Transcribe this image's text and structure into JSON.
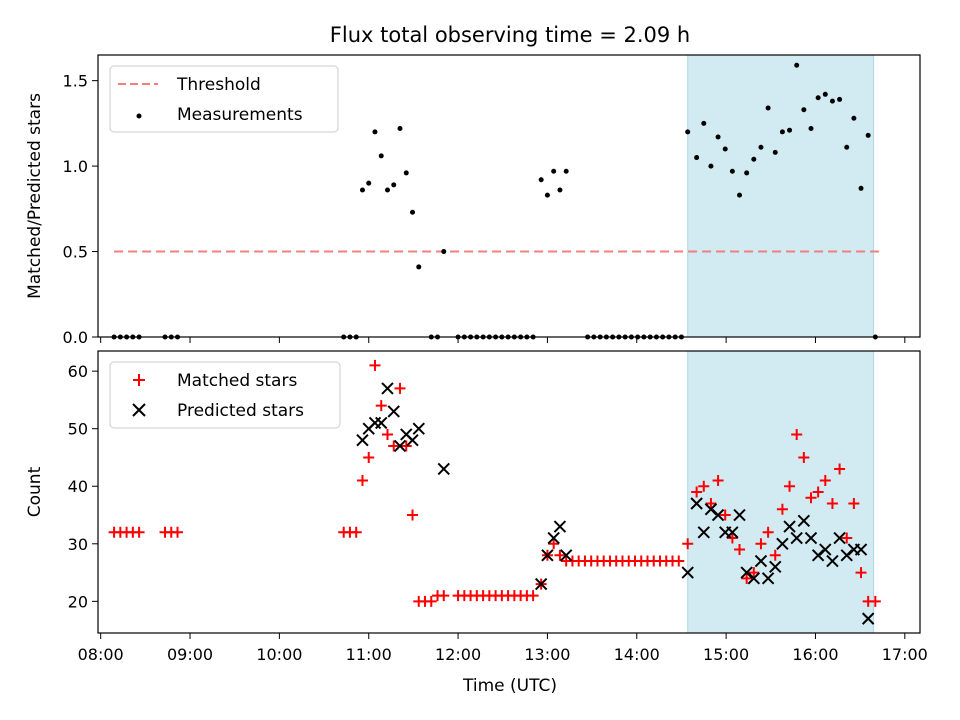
{
  "chart_data": {
    "title": "Flux total observing time = 2.09 h",
    "xlabel": "Time (UTC)",
    "xlim": [
      7.97,
      17.17
    ],
    "x_ticks": [
      {
        "x": 8,
        "label": "08:00"
      },
      {
        "x": 9,
        "label": "09:00"
      },
      {
        "x": 10,
        "label": "10:00"
      },
      {
        "x": 11,
        "label": "11:00"
      },
      {
        "x": 12,
        "label": "12:00"
      },
      {
        "x": 13,
        "label": "13:00"
      },
      {
        "x": 14,
        "label": "14:00"
      },
      {
        "x": 15,
        "label": "15:00"
      },
      {
        "x": 16,
        "label": "16:00"
      },
      {
        "x": 17,
        "label": "17:00"
      }
    ],
    "highlight": {
      "x0": 14.57,
      "x1": 16.65,
      "color": "#add8e6"
    },
    "panels": [
      {
        "type": "scatter",
        "ylabel": "Matched/Predicted stars",
        "ylim": [
          0,
          1.65
        ],
        "y_ticks": [
          {
            "v": 0,
            "label": "0.0"
          },
          {
            "v": 0.5,
            "label": "0.5"
          },
          {
            "v": 1.0,
            "label": "1.0"
          },
          {
            "v": 1.5,
            "label": "1.5"
          }
        ],
        "threshold": {
          "name": "Threshold",
          "value": 0.5,
          "x0": 8.15,
          "x1": 16.73,
          "color": "#f08080"
        },
        "series": [
          {
            "name": "Measurements",
            "color": "#000000",
            "marker": "dot",
            "points": [
              [
                8.15,
                0
              ],
              [
                8.22,
                0
              ],
              [
                8.29,
                0
              ],
              [
                8.36,
                0
              ],
              [
                8.43,
                0
              ],
              [
                8.72,
                0
              ],
              [
                8.79,
                0
              ],
              [
                8.86,
                0
              ],
              [
                10.72,
                0
              ],
              [
                10.79,
                0
              ],
              [
                10.86,
                0
              ],
              [
                10.93,
                0.86
              ],
              [
                11.0,
                0.9
              ],
              [
                11.07,
                1.2
              ],
              [
                11.14,
                1.06
              ],
              [
                11.21,
                0.86
              ],
              [
                11.28,
                0.89
              ],
              [
                11.35,
                1.22
              ],
              [
                11.42,
                0.96
              ],
              [
                11.49,
                0.73
              ],
              [
                11.56,
                0.41
              ],
              [
                11.7,
                0
              ],
              [
                11.77,
                0
              ],
              [
                11.84,
                0.5
              ],
              [
                12.0,
                0
              ],
              [
                12.07,
                0
              ],
              [
                12.14,
                0
              ],
              [
                12.21,
                0
              ],
              [
                12.28,
                0
              ],
              [
                12.35,
                0
              ],
              [
                12.42,
                0
              ],
              [
                12.49,
                0
              ],
              [
                12.56,
                0
              ],
              [
                12.63,
                0
              ],
              [
                12.7,
                0
              ],
              [
                12.77,
                0
              ],
              [
                12.84,
                0
              ],
              [
                12.93,
                0.92
              ],
              [
                13.0,
                0.83
              ],
              [
                13.07,
                0.97
              ],
              [
                13.14,
                0.86
              ],
              [
                13.21,
                0.97
              ],
              [
                13.45,
                0
              ],
              [
                13.52,
                0
              ],
              [
                13.59,
                0
              ],
              [
                13.66,
                0
              ],
              [
                13.73,
                0
              ],
              [
                13.8,
                0
              ],
              [
                13.87,
                0
              ],
              [
                13.94,
                0
              ],
              [
                14.01,
                0
              ],
              [
                14.08,
                0
              ],
              [
                14.15,
                0
              ],
              [
                14.22,
                0
              ],
              [
                14.29,
                0
              ],
              [
                14.36,
                0
              ],
              [
                14.43,
                0
              ],
              [
                14.5,
                0
              ],
              [
                14.57,
                1.2
              ],
              [
                14.67,
                1.05
              ],
              [
                14.75,
                1.25
              ],
              [
                14.83,
                1.0
              ],
              [
                14.91,
                1.17
              ],
              [
                14.99,
                1.1
              ],
              [
                15.07,
                0.97
              ],
              [
                15.15,
                0.83
              ],
              [
                15.23,
                0.96
              ],
              [
                15.31,
                1.04
              ],
              [
                15.39,
                1.11
              ],
              [
                15.47,
                1.34
              ],
              [
                15.55,
                1.08
              ],
              [
                15.63,
                1.2
              ],
              [
                15.71,
                1.21
              ],
              [
                15.79,
                1.59
              ],
              [
                15.87,
                1.33
              ],
              [
                15.95,
                1.22
              ],
              [
                16.03,
                1.4
              ],
              [
                16.11,
                1.42
              ],
              [
                16.19,
                1.38
              ],
              [
                16.27,
                1.39
              ],
              [
                16.35,
                1.11
              ],
              [
                16.43,
                1.28
              ],
              [
                16.51,
                0.87
              ],
              [
                16.59,
                1.18
              ],
              [
                16.67,
                0
              ]
            ]
          }
        ],
        "legend": {
          "position": "top-left",
          "entries": [
            "Threshold",
            "Measurements"
          ]
        }
      },
      {
        "type": "scatter",
        "ylabel": "Count",
        "ylim": [
          14.5,
          63.5
        ],
        "y_ticks": [
          {
            "v": 20,
            "label": "20"
          },
          {
            "v": 30,
            "label": "30"
          },
          {
            "v": 40,
            "label": "40"
          },
          {
            "v": 50,
            "label": "50"
          },
          {
            "v": 60,
            "label": "60"
          }
        ],
        "series": [
          {
            "name": "Matched stars",
            "color": "#ff0000",
            "marker": "plus",
            "points": [
              [
                8.15,
                32
              ],
              [
                8.22,
                32
              ],
              [
                8.29,
                32
              ],
              [
                8.36,
                32
              ],
              [
                8.43,
                32
              ],
              [
                8.72,
                32
              ],
              [
                8.79,
                32
              ],
              [
                8.86,
                32
              ],
              [
                10.72,
                32
              ],
              [
                10.79,
                32
              ],
              [
                10.86,
                32
              ],
              [
                10.93,
                41
              ],
              [
                11.0,
                45
              ],
              [
                11.07,
                61
              ],
              [
                11.14,
                54
              ],
              [
                11.21,
                49
              ],
              [
                11.28,
                47
              ],
              [
                11.35,
                57
              ],
              [
                11.42,
                47
              ],
              [
                11.49,
                35
              ],
              [
                11.56,
                20
              ],
              [
                11.63,
                20
              ],
              [
                11.7,
                20
              ],
              [
                11.77,
                21
              ],
              [
                11.84,
                21
              ],
              [
                12.0,
                21
              ],
              [
                12.07,
                21
              ],
              [
                12.14,
                21
              ],
              [
                12.21,
                21
              ],
              [
                12.28,
                21
              ],
              [
                12.35,
                21
              ],
              [
                12.42,
                21
              ],
              [
                12.49,
                21
              ],
              [
                12.56,
                21
              ],
              [
                12.63,
                21
              ],
              [
                12.7,
                21
              ],
              [
                12.77,
                21
              ],
              [
                12.84,
                21
              ],
              [
                12.93,
                23
              ],
              [
                13.0,
                28
              ],
              [
                13.07,
                30
              ],
              [
                13.14,
                28
              ],
              [
                13.21,
                27
              ],
              [
                13.28,
                27
              ],
              [
                13.35,
                27
              ],
              [
                13.42,
                27
              ],
              [
                13.49,
                27
              ],
              [
                13.56,
                27
              ],
              [
                13.63,
                27
              ],
              [
                13.7,
                27
              ],
              [
                13.77,
                27
              ],
              [
                13.84,
                27
              ],
              [
                13.91,
                27
              ],
              [
                13.98,
                27
              ],
              [
                14.05,
                27
              ],
              [
                14.12,
                27
              ],
              [
                14.19,
                27
              ],
              [
                14.26,
                27
              ],
              [
                14.33,
                27
              ],
              [
                14.4,
                27
              ],
              [
                14.47,
                27
              ],
              [
                14.57,
                30
              ],
              [
                14.67,
                39
              ],
              [
                14.75,
                40
              ],
              [
                14.83,
                37
              ],
              [
                14.91,
                41
              ],
              [
                14.99,
                35
              ],
              [
                15.07,
                31
              ],
              [
                15.15,
                29
              ],
              [
                15.23,
                24
              ],
              [
                15.31,
                25
              ],
              [
                15.39,
                30
              ],
              [
                15.47,
                32
              ],
              [
                15.55,
                28
              ],
              [
                15.63,
                36
              ],
              [
                15.71,
                40
              ],
              [
                15.79,
                49
              ],
              [
                15.87,
                45
              ],
              [
                15.95,
                38
              ],
              [
                16.03,
                39
              ],
              [
                16.11,
                41
              ],
              [
                16.19,
                37
              ],
              [
                16.27,
                43
              ],
              [
                16.35,
                31
              ],
              [
                16.43,
                37
              ],
              [
                16.51,
                25
              ],
              [
                16.59,
                20
              ],
              [
                16.67,
                20
              ]
            ]
          },
          {
            "name": "Predicted stars",
            "color": "#000000",
            "marker": "x",
            "points": [
              [
                10.93,
                48
              ],
              [
                11.0,
                50
              ],
              [
                11.07,
                51
              ],
              [
                11.14,
                51
              ],
              [
                11.21,
                57
              ],
              [
                11.28,
                53
              ],
              [
                11.35,
                47
              ],
              [
                11.42,
                49
              ],
              [
                11.49,
                48
              ],
              [
                11.56,
                50
              ],
              [
                11.84,
                43
              ],
              [
                12.93,
                23
              ],
              [
                13.0,
                28
              ],
              [
                13.07,
                31
              ],
              [
                13.14,
                33
              ],
              [
                13.21,
                28
              ],
              [
                14.57,
                25
              ],
              [
                14.67,
                37
              ],
              [
                14.75,
                32
              ],
              [
                14.83,
                36
              ],
              [
                14.91,
                35
              ],
              [
                14.99,
                32
              ],
              [
                15.07,
                32
              ],
              [
                15.15,
                35
              ],
              [
                15.23,
                25
              ],
              [
                15.31,
                24
              ],
              [
                15.39,
                27
              ],
              [
                15.47,
                24
              ],
              [
                15.55,
                26
              ],
              [
                15.63,
                30
              ],
              [
                15.71,
                33
              ],
              [
                15.79,
                31
              ],
              [
                15.87,
                34
              ],
              [
                15.95,
                31
              ],
              [
                16.03,
                28
              ],
              [
                16.11,
                29
              ],
              [
                16.19,
                27
              ],
              [
                16.27,
                31
              ],
              [
                16.35,
                28
              ],
              [
                16.43,
                29
              ],
              [
                16.51,
                29
              ],
              [
                16.59,
                17
              ]
            ]
          }
        ],
        "legend": {
          "position": "top-left",
          "entries": [
            "Matched stars",
            "Predicted stars"
          ]
        }
      }
    ]
  }
}
